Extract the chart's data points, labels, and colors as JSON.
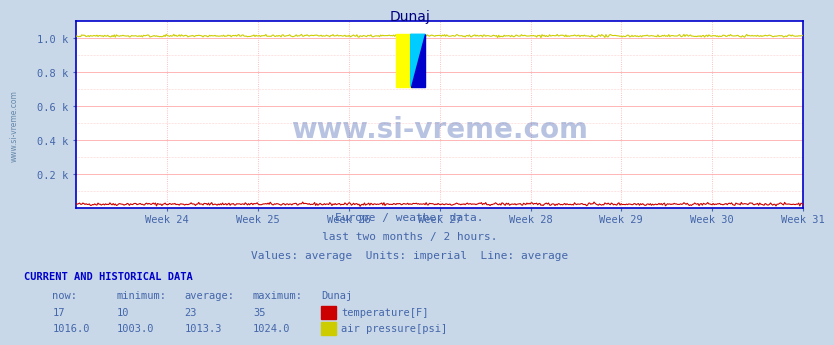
{
  "title": "Dunaj",
  "title_color": "#000080",
  "fig_bg_color": "#c8d8e8",
  "plot_bg_color": "#ffffff",
  "weeks": [
    "Week 24",
    "Week 25",
    "Week 26",
    "Week 27",
    "Week 28",
    "Week 29",
    "Week 30",
    "Week 31"
  ],
  "ylabel_ticks": [
    "0.2 k",
    "0.4 k",
    "0.6 k",
    "0.8 k",
    "1.0 k"
  ],
  "ytick_vals": [
    200,
    400,
    600,
    800,
    1000
  ],
  "ymin": 0,
  "ymax": 1100,
  "temp_min": 10,
  "temp_max": 35,
  "temp_now": 17,
  "temp_avg": 23,
  "pressure_min": 1003.0,
  "pressure_max": 1024.0,
  "pressure_now": 1016.0,
  "pressure_avg": 1013.3,
  "n_points": 672,
  "temp_color": "#cc0000",
  "pressure_color": "#cccc00",
  "axis_color": "#0000cc",
  "grid_h_color": "#ffaaaa",
  "grid_v_color": "#ffaaaa",
  "watermark_text": "www.si-vreme.com",
  "subtitle1": "Europe / weather data.",
  "subtitle2": "last two months / 2 hours.",
  "subtitle3": "Values: average  Units: imperial  Line: average",
  "subtitle_color": "#4466aa",
  "label_color": "#4466aa",
  "bottom_title": "CURRENT AND HISTORICAL DATA",
  "bottom_color": "#0000cc",
  "left_watermark": "www.si-vreme.com",
  "logo_yellow": "#ffff00",
  "logo_cyan": "#00ccff",
  "logo_blue": "#0000cc"
}
